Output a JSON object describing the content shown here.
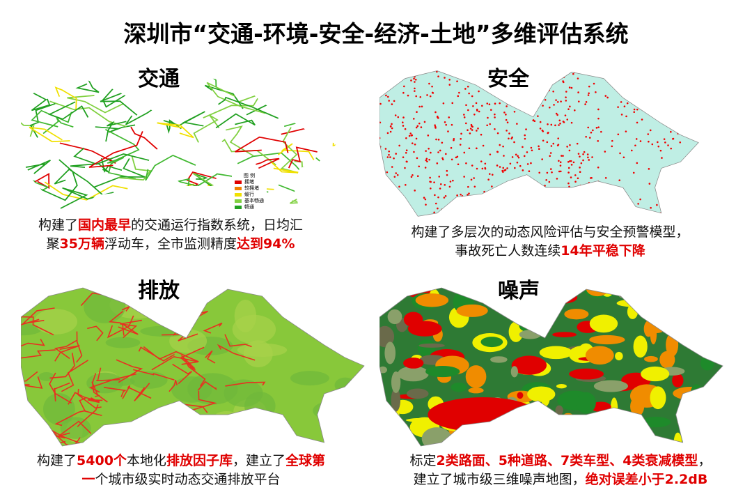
{
  "title": "深圳市“交通-环境-安全-经济-土地”多维评估系统",
  "panels": [
    {
      "heading": "交通",
      "caption": [
        [
          {
            "text": "构建了"
          },
          {
            "text": "国内最早",
            "highlight": true
          },
          {
            "text": "的交通运行指数系统，日均汇"
          }
        ],
        [
          {
            "text": "聚"
          },
          {
            "text": "35万辆",
            "highlight": true
          },
          {
            "text": "浮动车，全市监测精度"
          },
          {
            "text": "达到94%",
            "highlight": true
          }
        ]
      ]
    },
    {
      "heading": "安全",
      "caption": [
        [
          {
            "text": "构建了多层次的动态风险评估与安全预警模型，"
          }
        ],
        [
          {
            "text": "事故死亡人数连续"
          },
          {
            "text": "14年平稳下降",
            "highlight": true
          }
        ]
      ]
    },
    {
      "heading": "排放",
      "caption": [
        [
          {
            "text": "构建了"
          },
          {
            "text": "5400个",
            "highlight": true
          },
          {
            "text": "本地化"
          },
          {
            "text": "排放因子库",
            "highlight": true
          },
          {
            "text": "，建立了"
          },
          {
            "text": "全球第",
            "highlight": true
          }
        ],
        [
          {
            "text": "一",
            "highlight": true
          },
          {
            "text": "个城市级实时动态交通排放平台"
          }
        ]
      ]
    },
    {
      "heading": "噪声",
      "caption": [
        [
          {
            "text": "标定"
          },
          {
            "text": "2类路面、5种道路、7类车型、4类衰减模型",
            "highlight": true
          },
          {
            "text": "，"
          }
        ],
        [
          {
            "text": "建立了城市级三维噪声地图，"
          },
          {
            "text": "绝对误差小于2.2dB",
            "highlight": true
          }
        ]
      ]
    }
  ],
  "legend": {
    "title": "图 例",
    "items": [
      {
        "label": "拥堵",
        "color": "#e00000"
      },
      {
        "label": "较拥堵",
        "color": "#f08000"
      },
      {
        "label": "缓行",
        "color": "#f0e000"
      },
      {
        "label": "基本畅通",
        "color": "#80d040"
      },
      {
        "label": "畅通",
        "color": "#20a020"
      }
    ]
  }
}
